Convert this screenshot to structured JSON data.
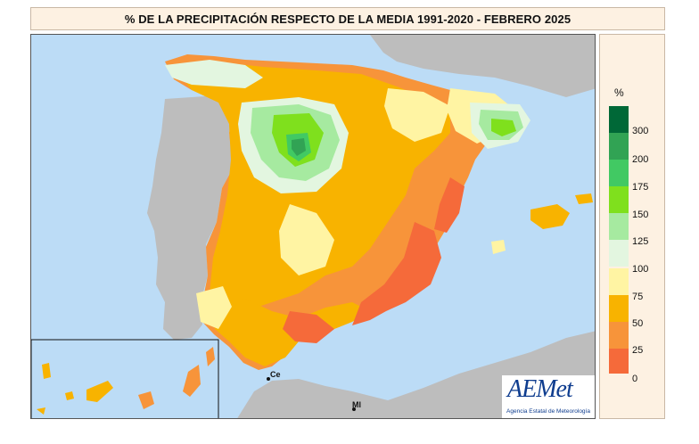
{
  "title": "% DE LA PRECIPITACIÓN RESPECTO DE LA MEDIA 1991-2020 - FEBRERO 2025",
  "legend": {
    "unit": "%",
    "bands": [
      {
        "label": "300",
        "color": "#006837"
      },
      {
        "label": "200",
        "color": "#31a354"
      },
      {
        "label": "175",
        "color": "#41c963"
      },
      {
        "label": "150",
        "color": "#7fe01d"
      },
      {
        "label": "125",
        "color": "#a6eaa0"
      },
      {
        "label": "100",
        "color": "#e3f6e0"
      },
      {
        "label": "75",
        "color": "#fff4a3"
      },
      {
        "label": "50",
        "color": "#f8b300"
      },
      {
        "label": "25",
        "color": "#f7943a"
      },
      {
        "label": "0",
        "color": "#f56a3a"
      }
    ]
  },
  "map": {
    "sea_color": "#bcdcf6",
    "land_color": "#bdbdbd",
    "cities": [
      {
        "label": "Ce"
      },
      {
        "label": "Ml"
      }
    ]
  },
  "logo": {
    "name": "AEMet",
    "subtitle": "Agencia Estatal de Meteorología"
  }
}
